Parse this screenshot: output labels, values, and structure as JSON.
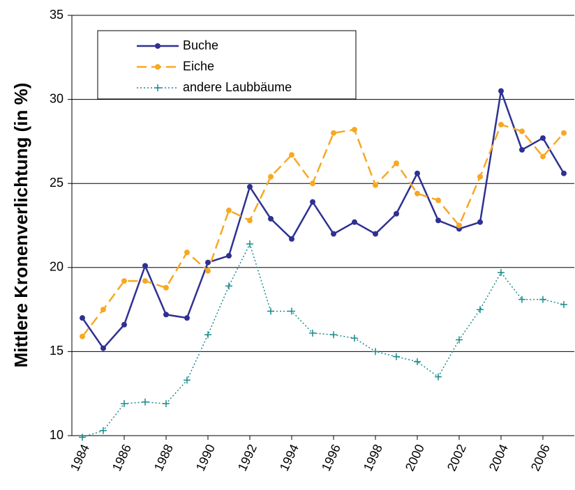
{
  "chart_data": {
    "type": "line",
    "y_label": "Mittlere Kronenverlichtung (in %)",
    "x": [
      1984,
      1985,
      1986,
      1987,
      1988,
      1989,
      1990,
      1991,
      1992,
      1993,
      1994,
      1995,
      1996,
      1997,
      1998,
      1999,
      2000,
      2001,
      2002,
      2003,
      2004,
      2005,
      2006,
      2007
    ],
    "xlim": [
      1983.5,
      2007.5
    ],
    "xticks": [
      1984,
      1986,
      1988,
      1990,
      1992,
      1994,
      1996,
      1998,
      2000,
      2002,
      2004,
      2006
    ],
    "ylim": [
      10,
      35
    ],
    "yticks": [
      10,
      15,
      20,
      25,
      30,
      35
    ],
    "grid": true,
    "legend": "top-left",
    "series": [
      {
        "name": "Buche",
        "color": "#2e3192",
        "dash": "solid",
        "marker": "circle",
        "values": [
          17.0,
          15.2,
          16.6,
          20.1,
          17.2,
          17.0,
          20.3,
          20.7,
          24.8,
          22.9,
          21.7,
          23.9,
          22.0,
          22.7,
          22.0,
          23.2,
          25.6,
          22.8,
          22.3,
          22.7,
          30.5,
          27.0,
          27.7,
          25.6
        ]
      },
      {
        "name": "Eiche",
        "color": "#f7a823",
        "dash": "dashed",
        "marker": "circle",
        "values": [
          15.9,
          17.5,
          19.2,
          19.2,
          18.8,
          20.9,
          19.8,
          23.4,
          22.8,
          25.4,
          26.7,
          25.0,
          28.0,
          28.2,
          24.9,
          26.2,
          24.4,
          24.0,
          22.5,
          25.4,
          28.5,
          28.1,
          26.6,
          28.0
        ]
      },
      {
        "name": "andere Laubbäume",
        "color": "#1a8a8a",
        "dash": "dotted",
        "marker": "plus",
        "values": [
          9.9,
          10.3,
          11.9,
          12.0,
          11.9,
          13.3,
          16.0,
          18.9,
          21.4,
          17.4,
          17.4,
          16.1,
          16.0,
          15.8,
          15.0,
          14.7,
          14.4,
          13.5,
          15.7,
          17.5,
          19.7,
          18.1,
          18.1,
          17.8
        ]
      }
    ]
  }
}
